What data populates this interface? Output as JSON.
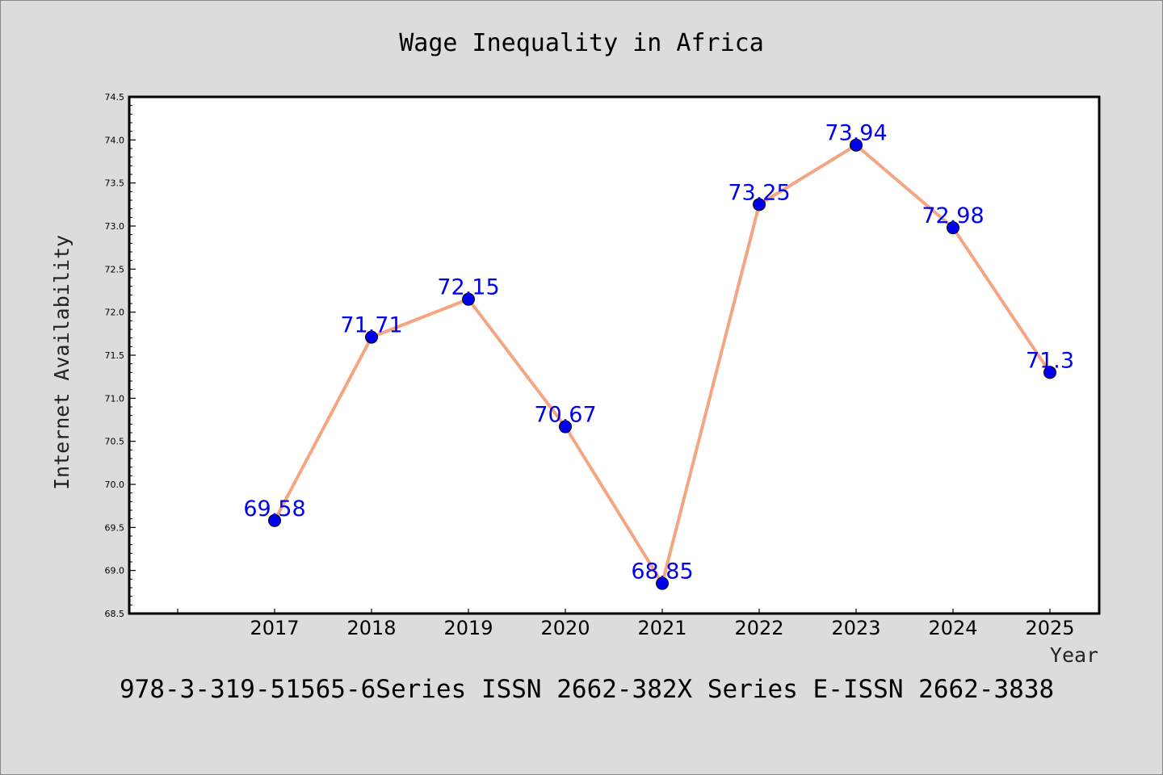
{
  "chart_data": {
    "type": "line",
    "title": "Wage Inequality in Africa",
    "xlabel": "Year",
    "ylabel": "Internet Availability",
    "x": [
      "2017",
      "2018",
      "2019",
      "2020",
      "2021",
      "2022",
      "2023",
      "2024",
      "2025"
    ],
    "values": [
      69.58,
      71.71,
      72.15,
      70.67,
      68.85,
      73.25,
      73.94,
      72.98,
      71.3
    ],
    "data_labels": [
      "69.58",
      "71.71",
      "72.15",
      "70.67",
      "68.85",
      "73.25",
      "73.94",
      "72.98",
      "71.3"
    ],
    "ylim": [
      68.5,
      74.5
    ],
    "yticks": [
      "68.5",
      "69.0",
      "69.5",
      "70.0",
      "70.5",
      "71.0",
      "71.5",
      "72.0",
      "72.5",
      "73.0",
      "73.5",
      "74.0",
      "74.5"
    ],
    "grid": false,
    "legend": "none",
    "line_color": "#f4a582",
    "marker_color": "#0000ee",
    "label_color": "#0000ee"
  },
  "footer_text": "978-3-319-51565-6Series ISSN 2662-382X Series E-ISSN 2662-3838"
}
